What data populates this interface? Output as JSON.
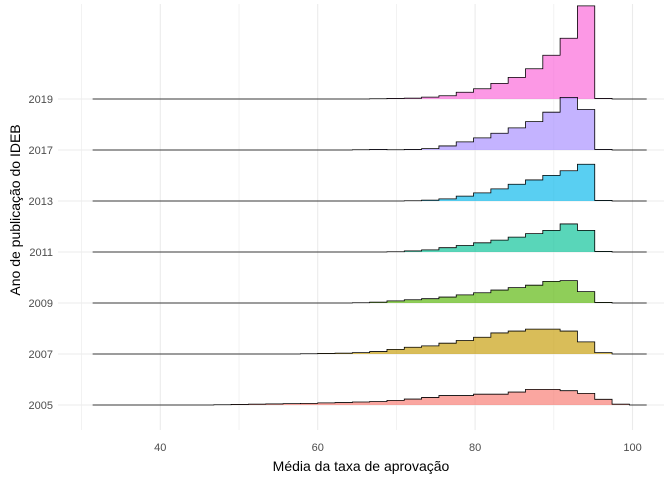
{
  "chart_data": {
    "type": "area",
    "subtype": "ridgeline-histogram",
    "xlabel": "Média da taxa de aprovação",
    "ylabel": "Ano de publicação do IDEB",
    "xlim": [
      27,
      104
    ],
    "x_ticks": [
      40,
      60,
      80,
      100
    ],
    "grid": true,
    "legend": "none",
    "bin_width": 2.2,
    "series": [
      {
        "name": "2005",
        "color": "#F8766D",
        "start": 31.4,
        "end": 102.8,
        "values": [
          0,
          0,
          0,
          0,
          0,
          0,
          0,
          0.01,
          0.02,
          0.03,
          0.04,
          0.05,
          0.06,
          0.08,
          0.09,
          0.11,
          0.13,
          0.17,
          0.22,
          0.28,
          0.35,
          0.35,
          0.4,
          0.4,
          0.48,
          0.58,
          0.58,
          0.53,
          0.43,
          0.21,
          0.03,
          0
        ]
      },
      {
        "name": "2007",
        "color": "#C49A00",
        "start": 31.4,
        "end": 102.8,
        "values": [
          0,
          0,
          0,
          0,
          0,
          0,
          0,
          0,
          0,
          0,
          0,
          0,
          0.01,
          0.02,
          0.03,
          0.05,
          0.09,
          0.17,
          0.25,
          0.3,
          0.4,
          0.5,
          0.62,
          0.78,
          0.85,
          0.92,
          0.92,
          0.85,
          0.45,
          0.05,
          0,
          0
        ]
      },
      {
        "name": "2009",
        "color": "#53B400",
        "start": 31.4,
        "end": 102.8,
        "values": [
          0,
          0,
          0,
          0,
          0,
          0,
          0,
          0,
          0,
          0,
          0,
          0,
          0,
          0,
          0,
          0.01,
          0.03,
          0.08,
          0.12,
          0.16,
          0.22,
          0.3,
          0.38,
          0.48,
          0.57,
          0.66,
          0.8,
          0.83,
          0.42,
          0.02,
          0,
          0
        ]
      },
      {
        "name": "2011",
        "color": "#00C094",
        "start": 31.4,
        "end": 102.8,
        "values": [
          0,
          0,
          0,
          0,
          0,
          0,
          0,
          0,
          0,
          0,
          0,
          0,
          0,
          0,
          0,
          0,
          0,
          0.01,
          0.04,
          0.08,
          0.16,
          0.24,
          0.34,
          0.44,
          0.55,
          0.68,
          0.8,
          1.04,
          0.8,
          0.02,
          0,
          0
        ]
      },
      {
        "name": "2013",
        "color": "#00B6EB",
        "start": 31.4,
        "end": 102.8,
        "values": [
          0,
          0,
          0,
          0,
          0,
          0,
          0,
          0,
          0,
          0,
          0,
          0,
          0,
          0,
          0,
          0,
          0,
          0,
          0.01,
          0.03,
          0.08,
          0.18,
          0.3,
          0.45,
          0.62,
          0.78,
          0.95,
          1.12,
          1.36,
          0.02,
          0,
          0
        ]
      },
      {
        "name": "2017",
        "color": "#A58AFF",
        "start": 31.4,
        "end": 102.8,
        "values": [
          0,
          0,
          0,
          0,
          0,
          0,
          0,
          0,
          0,
          0,
          0,
          0,
          0,
          0,
          0,
          0.01,
          0.02,
          0.01,
          0.02,
          0.05,
          0.15,
          0.3,
          0.45,
          0.62,
          0.82,
          1.05,
          1.4,
          1.95,
          1.5,
          0.02,
          0,
          0
        ]
      },
      {
        "name": "2019",
        "color": "#FB61D7",
        "start": 31.4,
        "end": 102.8,
        "values": [
          0,
          0,
          0,
          0,
          0,
          0,
          0,
          0,
          0,
          0,
          0,
          0,
          0,
          0,
          0,
          0,
          0.01,
          0.02,
          0.03,
          0.07,
          0.12,
          0.25,
          0.38,
          0.58,
          0.8,
          1.12,
          1.62,
          2.25,
          3.45,
          0.02,
          0,
          0
        ]
      }
    ]
  }
}
